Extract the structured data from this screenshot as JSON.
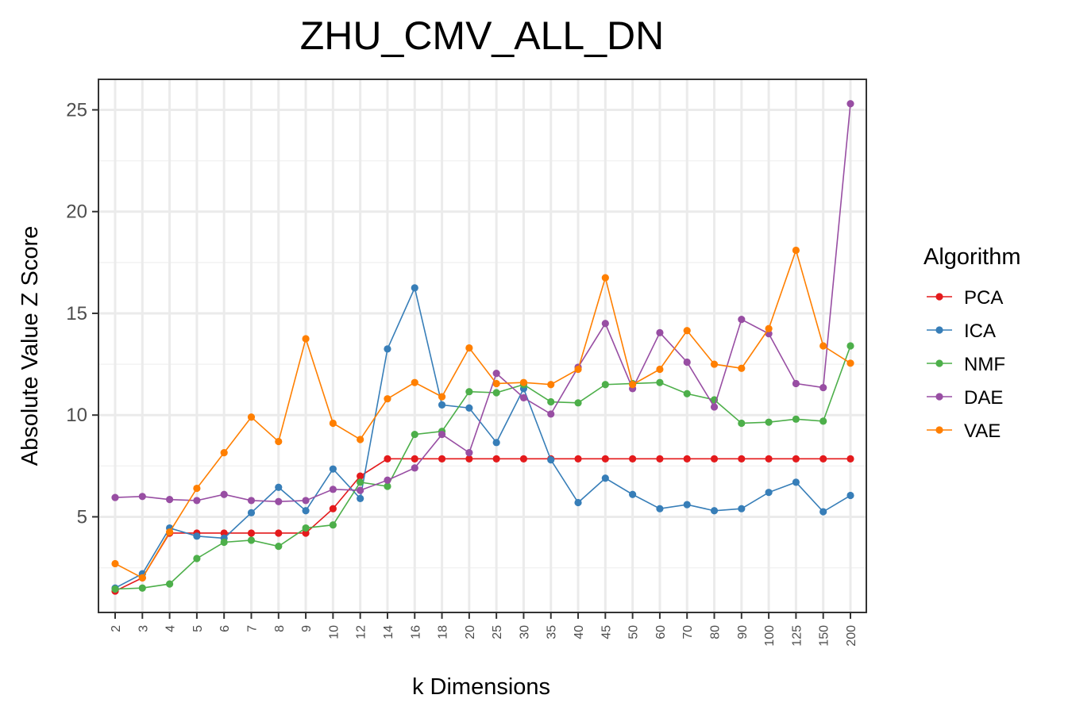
{
  "chart_data": {
    "type": "line",
    "title": "ZHU_CMV_ALL_DN",
    "xlabel": "k Dimensions",
    "ylabel": "Absolute Value Z Score",
    "categories": [
      "2",
      "3",
      "4",
      "5",
      "6",
      "7",
      "8",
      "9",
      "10",
      "12",
      "14",
      "16",
      "18",
      "20",
      "25",
      "30",
      "35",
      "40",
      "45",
      "50",
      "60",
      "70",
      "80",
      "90",
      "100",
      "125",
      "150",
      "200"
    ],
    "ylim": [
      0.3,
      26.5
    ],
    "yticks": [
      "5",
      "10",
      "15",
      "20",
      "25"
    ],
    "grid": true,
    "legend_title": "Algorithm",
    "legend_position": "right",
    "series": [
      {
        "name": "PCA",
        "color": "#e41a1c",
        "values": [
          1.35,
          2.0,
          4.2,
          4.2,
          4.2,
          4.2,
          4.2,
          4.2,
          5.4,
          7.0,
          7.85,
          7.85,
          7.85,
          7.85,
          7.85,
          7.85,
          7.85,
          7.85,
          7.85,
          7.85,
          7.85,
          7.85,
          7.85,
          7.85,
          7.85,
          7.85,
          7.85,
          7.85
        ]
      },
      {
        "name": "ICA",
        "color": "#377eb8",
        "values": [
          1.5,
          2.2,
          4.45,
          4.05,
          3.95,
          5.2,
          6.45,
          5.3,
          7.35,
          5.9,
          13.25,
          16.25,
          10.5,
          10.35,
          8.65,
          11.3,
          7.8,
          5.7,
          6.9,
          6.1,
          5.4,
          5.6,
          5.3,
          5.4,
          6.2,
          6.7,
          5.25,
          6.05
        ]
      },
      {
        "name": "NMF",
        "color": "#4daf4a",
        "values": [
          1.45,
          1.5,
          1.7,
          2.95,
          3.75,
          3.85,
          3.55,
          4.45,
          4.6,
          6.7,
          6.5,
          9.05,
          9.2,
          11.15,
          11.1,
          11.5,
          10.65,
          10.6,
          11.5,
          11.55,
          11.6,
          11.05,
          10.75,
          9.6,
          9.65,
          9.8,
          9.7,
          13.4
        ]
      },
      {
        "name": "DAE",
        "color": "#984ea3",
        "values": [
          5.95,
          6.0,
          5.85,
          5.8,
          6.1,
          5.8,
          5.75,
          5.8,
          6.35,
          6.3,
          6.8,
          7.4,
          9.05,
          8.15,
          12.05,
          10.85,
          10.05,
          12.35,
          14.5,
          11.3,
          14.05,
          12.6,
          10.4,
          14.7,
          14.0,
          11.55,
          11.35,
          25.3
        ]
      },
      {
        "name": "VAE",
        "color": "#ff7f00",
        "values": [
          2.7,
          2.0,
          4.25,
          6.4,
          8.15,
          9.9,
          8.7,
          13.75,
          9.6,
          8.8,
          10.8,
          11.6,
          10.9,
          13.3,
          11.55,
          11.6,
          11.5,
          12.25,
          16.75,
          11.5,
          12.25,
          14.15,
          12.5,
          12.3,
          14.25,
          18.1,
          13.4,
          12.55
        ]
      }
    ]
  }
}
